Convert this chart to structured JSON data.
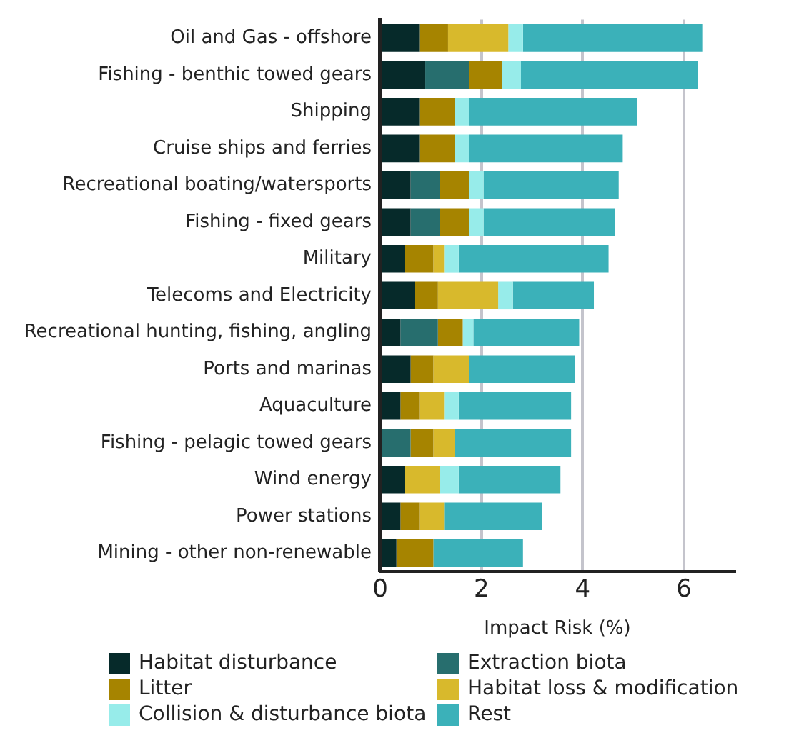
{
  "chart_data": {
    "type": "bar",
    "orientation": "horizontal",
    "stacked": true,
    "xlabel": "Impact Risk (%)",
    "categories": [
      "Oil and Gas - offshore",
      "Fishing - benthic towed gears",
      "Shipping",
      "Cruise ships and ferries",
      "Recreational boating/watersports",
      "Fishing - fixed gears",
      "Military",
      "Telecoms and Electricity",
      "Recreational hunting, fishing, angling",
      "Ports and marinas",
      "Aquaculture",
      "Fishing - pelagic towed gears",
      "Wind energy",
      "Power stations",
      "Mining - other non-renewable"
    ],
    "series": [
      {
        "name": "Habitat disturbance",
        "color": "#062a2a",
        "values": [
          0.77,
          0.89,
          0.77,
          0.77,
          0.6,
          0.6,
          0.48,
          0.68,
          0.4,
          0.6,
          0.4,
          null,
          0.48,
          0.4,
          0.32
        ]
      },
      {
        "name": "Extraction biota",
        "color": "#276e6e",
        "values": [
          null,
          0.86,
          null,
          null,
          0.58,
          0.58,
          null,
          null,
          0.74,
          null,
          null,
          0.6,
          null,
          null,
          null
        ]
      },
      {
        "name": "Litter",
        "color": "#a68400",
        "values": [
          0.57,
          0.66,
          0.7,
          0.7,
          0.57,
          0.57,
          0.57,
          0.46,
          0.49,
          0.45,
          0.37,
          0.45,
          null,
          0.37,
          0.73
        ]
      },
      {
        "name": "Habitat loss & modification",
        "color": "#d8b92c",
        "values": [
          1.19,
          null,
          null,
          null,
          null,
          null,
          0.21,
          1.19,
          null,
          0.7,
          0.49,
          0.42,
          0.7,
          0.49,
          null
        ]
      },
      {
        "name": "Collision & disturbance biota",
        "color": "#97ecea",
        "values": [
          0.29,
          0.37,
          0.28,
          0.28,
          0.29,
          0.29,
          0.29,
          0.29,
          0.21,
          null,
          0.29,
          null,
          0.37,
          null,
          null
        ]
      },
      {
        "name": "Rest",
        "color": "#3bb1b9",
        "values": [
          3.54,
          3.49,
          3.33,
          3.04,
          2.67,
          2.59,
          2.96,
          1.6,
          2.09,
          2.1,
          2.22,
          2.3,
          2.01,
          1.93,
          1.77
        ]
      }
    ],
    "xlim": [
      0,
      7
    ],
    "xticks": [
      0,
      2,
      4,
      6
    ],
    "grid": "x",
    "legend": "bottom"
  }
}
